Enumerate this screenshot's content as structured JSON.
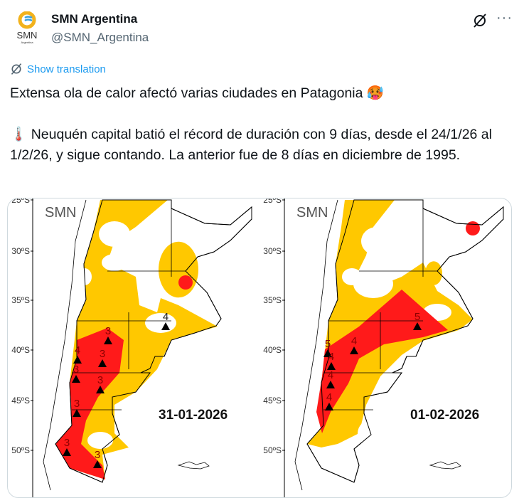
{
  "author": {
    "name": "SMN Argentina",
    "handle": "@SMN_Argentina",
    "avatar_text": "SMN",
    "avatar_subtext": "Argentina"
  },
  "actions": {
    "grok_icon": "grok-icon",
    "more_label": "···"
  },
  "translation": {
    "label": "Show translation"
  },
  "tweet": {
    "line1": "Extensa ola de calor afectó varias ciudades en Patagonia 🥵",
    "line2": "🌡️ Neuquén capital batió el récord de duración con 9 días, desde el 24/1/26 al 1/2/26, y sigue contando. La anterior fue de 8 días en diciembre de 1995."
  },
  "colors": {
    "accent": "#1d9bf0",
    "heat_orange": "#ffc800",
    "heat_red": "#ff1a1a"
  },
  "maps": [
    {
      "watermark": "SMN",
      "date": "31-01-2026",
      "lat_labels": [
        "25ºS",
        "30ºS",
        "35ºS",
        "40ºS",
        "45ºS",
        "50ºS"
      ],
      "marker_labels": [
        "4",
        "3",
        "4",
        "3",
        "3",
        "3",
        "3",
        "3",
        "3"
      ]
    },
    {
      "watermark": "SMN",
      "date": "01-02-2026",
      "lat_labels": [
        "25ºS",
        "30ºS",
        "35ºS",
        "40ºS",
        "45ºS",
        "50ºS"
      ],
      "marker_labels": [
        "5",
        "4",
        "5",
        "4",
        "4",
        "4"
      ]
    }
  ]
}
